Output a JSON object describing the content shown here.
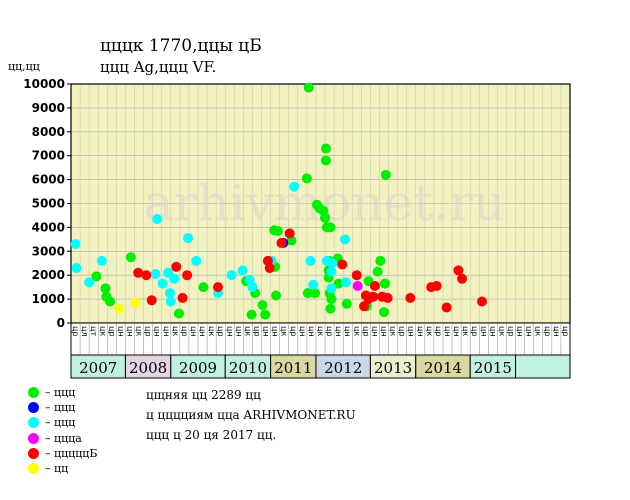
{
  "header": {
    "title": "цццк 1770,ццы цБ",
    "subtitle": "ццц Ag,ццц VF."
  },
  "y_unit": "цц,цц",
  "watermark": "arhivmonet.ru",
  "colors": {
    "plot_bg": "#f2f2c0",
    "green": "#00ee00",
    "blue": "#0000ff",
    "cyan": "#00ffff",
    "magenta": "#ff00ff",
    "red": "#ff0000",
    "yellow": "#ffff00",
    "band_a": "#c0f0e0",
    "band_b": "#e4d4e4",
    "band_c": "#d8d8a0",
    "band_d": "#c8d8e8",
    "band_e": "#e8f0d0"
  },
  "legend": [
    {
      "color": "#00ee00",
      "label": "– ццц"
    },
    {
      "color": "#0000ff",
      "label": "– ццц"
    },
    {
      "color": "#00ffff",
      "label": "– ццц"
    },
    {
      "color": "#ff00ff",
      "label": "– ццца"
    },
    {
      "color": "#ff0000",
      "label": "– цццццБ"
    },
    {
      "color": "#ffff00",
      "label": "– цц"
    }
  ],
  "notes": [
    "цщняя цц 2289 цц",
    "ц цццциям цца ARHIVMONET.RU",
    "ццц ц 20 ця 2017 цц."
  ],
  "chart_data": {
    "type": "scatter",
    "title": "цццк 1770,ццы цБ",
    "subtitle": "ццц Ag,ццц VF.",
    "ylabel": "цц,цц",
    "ylim": [
      0,
      10000
    ],
    "yticks": [
      0,
      1000,
      2000,
      3000,
      4000,
      5000,
      6000,
      7000,
      8000,
      9000,
      10000
    ],
    "grid": true,
    "x_slots": 55,
    "slot_labels": [
      "цр",
      "цл",
      "цт",
      "цк",
      "цр",
      "цн",
      "цн",
      "цк",
      "цр",
      "цн",
      "цн",
      "цк",
      "цр",
      "цн",
      "цн",
      "цк",
      "цр",
      "цн",
      "цн",
      "цк",
      "цр",
      "цн",
      "цн",
      "цк",
      "цр",
      "цн",
      "цн",
      "цк",
      "цр",
      "цн",
      "цн",
      "цк",
      "цр",
      "цн",
      "цн",
      "цк",
      "цр",
      "цн",
      "цн",
      "цк",
      "цр",
      "цн",
      "цн",
      "цк",
      "цр",
      "цн",
      "цн",
      "цк",
      "цр",
      "цн",
      "цн",
      "цк",
      "цр",
      "цн",
      "цр"
    ],
    "years": [
      {
        "label": "2007",
        "start": 0,
        "end": 6,
        "band": "#c0f0e0"
      },
      {
        "label": "2008",
        "start": 6,
        "end": 11,
        "band": "#e4d4e4"
      },
      {
        "label": "2009",
        "start": 11,
        "end": 17,
        "band": "#c0f0e0"
      },
      {
        "label": "2010",
        "start": 17,
        "end": 22,
        "band": "#c0f0e0"
      },
      {
        "label": "2011",
        "start": 22,
        "end": 27,
        "band": "#d8d8a0"
      },
      {
        "label": "2012",
        "start": 27,
        "end": 33,
        "band": "#c8d8e8"
      },
      {
        "label": "2013",
        "start": 33,
        "end": 38,
        "band": "#e8f0d0"
      },
      {
        "label": "2014",
        "start": 38,
        "end": 44,
        "band": "#d8d8a0"
      },
      {
        "label": "2015",
        "start": 44,
        "end": 49,
        "band": "#c0f0e0"
      },
      {
        "label": "",
        "start": 49,
        "end": 55,
        "band": "#c0f0e0"
      }
    ],
    "series": [
      {
        "color": "#00ee00",
        "points": [
          [
            2.3,
            1950
          ],
          [
            3.3,
            1450
          ],
          [
            3.4,
            1100
          ],
          [
            3.8,
            900
          ],
          [
            6.1,
            2750
          ],
          [
            11.4,
            400
          ],
          [
            14.1,
            1500
          ],
          [
            18.8,
            1750
          ],
          [
            19.4,
            350
          ],
          [
            19.8,
            1250
          ],
          [
            20.6,
            750
          ],
          [
            20.9,
            350
          ],
          [
            22.0,
            2350
          ],
          [
            21.9,
            3880
          ],
          [
            22.3,
            3850
          ],
          [
            22.1,
            1150
          ],
          [
            23.8,
            3450
          ],
          [
            25.6,
            1250
          ],
          [
            25.5,
            6050
          ],
          [
            25.7,
            9850
          ],
          [
            26.4,
            1250
          ],
          [
            26.6,
            4950
          ],
          [
            26.9,
            4800
          ],
          [
            27.3,
            4700
          ],
          [
            27.5,
            4400
          ],
          [
            27.7,
            4000
          ],
          [
            27.6,
            7300
          ],
          [
            27.6,
            6800
          ],
          [
            28.1,
            4000
          ],
          [
            28.0,
            2600
          ],
          [
            27.9,
            2200
          ],
          [
            27.9,
            1900
          ],
          [
            28.0,
            1250
          ],
          [
            28.2,
            1000
          ],
          [
            28.1,
            600
          ],
          [
            28.9,
            2700
          ],
          [
            29.0,
            1650
          ],
          [
            29.9,
            800
          ],
          [
            32.1,
            700
          ],
          [
            32.3,
            1750
          ],
          [
            33.3,
            2150
          ],
          [
            33.6,
            2600
          ],
          [
            34.1,
            1650
          ],
          [
            34.0,
            450
          ],
          [
            34.2,
            6200
          ]
        ]
      },
      {
        "color": "#0000ff",
        "points": [
          [
            22.9,
            3350
          ]
        ]
      },
      {
        "color": "#00ffff",
        "points": [
          [
            0.0,
            3300
          ],
          [
            0.1,
            2300
          ],
          [
            1.5,
            1700
          ],
          [
            2.9,
            2600
          ],
          [
            8.8,
            2050
          ],
          [
            9.0,
            4350
          ],
          [
            9.6,
            1650
          ],
          [
            10.2,
            2100
          ],
          [
            10.4,
            1250
          ],
          [
            10.5,
            900
          ],
          [
            10.9,
            1850
          ],
          [
            12.4,
            3550
          ],
          [
            13.3,
            2600
          ],
          [
            15.7,
            1250
          ],
          [
            17.2,
            2000
          ],
          [
            18.4,
            2200
          ],
          [
            19.2,
            1800
          ],
          [
            19.5,
            1500
          ],
          [
            21.6,
            2600
          ],
          [
            24.1,
            5700
          ],
          [
            25.9,
            2600
          ],
          [
            26.2,
            1600
          ],
          [
            27.7,
            2600
          ],
          [
            28.2,
            2150
          ],
          [
            28.2,
            1450
          ],
          [
            28.3,
            2500
          ],
          [
            29.7,
            3500
          ],
          [
            29.8,
            1700
          ]
        ]
      },
      {
        "color": "#ff00ff",
        "points": [
          [
            31.1,
            1550
          ]
        ]
      },
      {
        "color": "#ff0000",
        "points": [
          [
            6.9,
            2100
          ],
          [
            7.8,
            2000
          ],
          [
            8.4,
            950
          ],
          [
            11.1,
            2350
          ],
          [
            11.8,
            1050
          ],
          [
            12.3,
            2000
          ],
          [
            15.7,
            1500
          ],
          [
            21.2,
            2600
          ],
          [
            21.4,
            2300
          ],
          [
            22.7,
            3350
          ],
          [
            23.6,
            3750
          ],
          [
            29.4,
            2450
          ],
          [
            31.0,
            2000
          ],
          [
            31.8,
            700
          ],
          [
            32.0,
            1150
          ],
          [
            32.3,
            1000
          ],
          [
            32.8,
            1100
          ],
          [
            33.0,
            1550
          ],
          [
            33.8,
            1100
          ],
          [
            34.4,
            1050
          ],
          [
            36.9,
            1050
          ],
          [
            39.2,
            1500
          ],
          [
            39.8,
            1550
          ],
          [
            40.9,
            650
          ],
          [
            42.2,
            2200
          ],
          [
            42.6,
            1850
          ],
          [
            44.8,
            900
          ]
        ]
      },
      {
        "color": "#ffff00",
        "points": [
          [
            4.8,
            600
          ],
          [
            6.6,
            850
          ]
        ]
      }
    ]
  }
}
